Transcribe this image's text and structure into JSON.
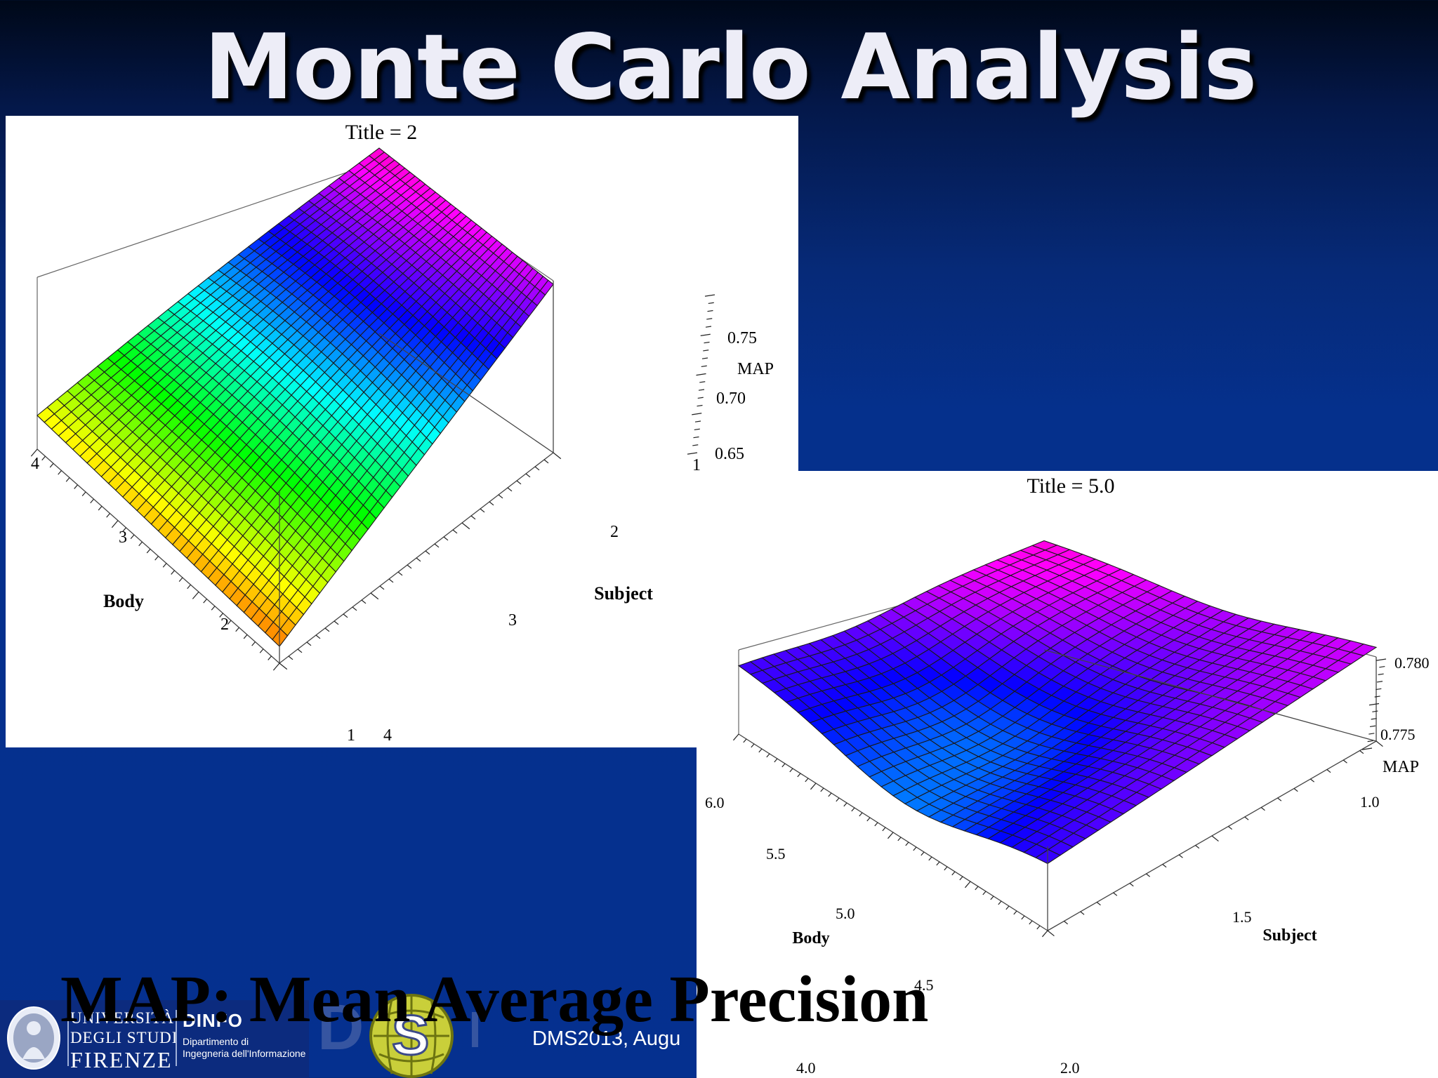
{
  "slide": {
    "title": "Monte Carlo Analysis",
    "caption": "MAP: Mean Average Precision",
    "footer_text": "DMS2013, Augu"
  },
  "logos": {
    "university_line1": "UNIVERSITÀ",
    "university_line2": "DEGLI STUDI",
    "university_line3": "FIRENZE",
    "dept_name": "DINFO",
    "dept_line1": "Dipartimento di",
    "dept_line2": "Ingegneria dell'Informazione",
    "lab_icon": "dsi-logo-icon",
    "seal_icon": "university-seal-icon"
  },
  "colors": {
    "background": "#05308c",
    "title_text": "#ededf7",
    "surface_scale": [
      "#ff0000",
      "#ffff00",
      "#00ff00",
      "#00ffff",
      "#0000ff",
      "#ff00ff",
      "#ff0044"
    ]
  },
  "chart_data": [
    {
      "type": "surface3d",
      "title": "Title = 2",
      "xlabel": "Body",
      "ylabel": "Subject",
      "zlabel": "MAP",
      "body_ticks": [
        "1",
        "2",
        "3",
        "4"
      ],
      "subject_ticks": [
        "1",
        "2",
        "3",
        "4"
      ],
      "map_ticks": [
        "0.65",
        "0.70",
        "0.75"
      ],
      "xlim": [
        1,
        4
      ],
      "ylim": [
        1,
        4
      ],
      "zlim": [
        0.62,
        0.78
      ],
      "corner_values": {
        "body1_subject1": 0.64,
        "body4_subject1": 0.62,
        "body1_subject4": 0.77,
        "body4_subject4": 0.75
      },
      "mesh": true
    },
    {
      "type": "surface3d",
      "title": "Title = 5.0",
      "xlabel": "Body",
      "ylabel": "Subject",
      "zlabel": "MAP",
      "body_ticks": [
        "4.0",
        "4.5",
        "5.0",
        "5.5",
        "6.0"
      ],
      "subject_ticks": [
        "1.0",
        "1.5",
        "2.0"
      ],
      "map_ticks": [
        "0.775",
        "0.780"
      ],
      "xlim": [
        4.0,
        6.0
      ],
      "ylim": [
        1.0,
        2.0
      ],
      "zlim": [
        0.771,
        0.782
      ],
      "mesh": true
    }
  ]
}
